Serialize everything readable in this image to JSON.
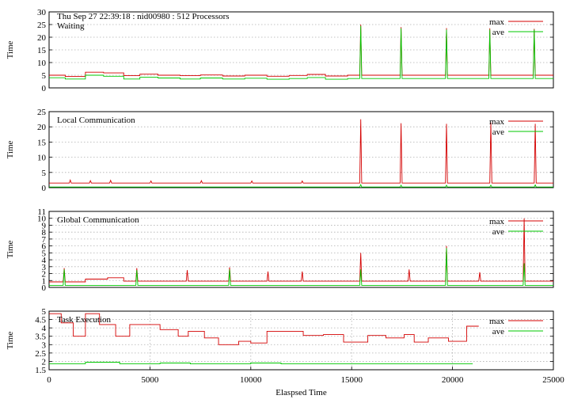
{
  "header": {
    "timestamp_text": "Thu Sep 27 22:39:18 : nid00980 : 512 Processors"
  },
  "colors": {
    "max": "#d40000",
    "ave": "#00c800",
    "grid": "#b0b0b0",
    "frame": "#000000"
  },
  "chart_data": [
    {
      "type": "line",
      "panel_title": "Waiting",
      "ylabel": "Time",
      "xlabel": "",
      "xlim": [
        0,
        25000
      ],
      "ylim": [
        0,
        30
      ],
      "yticks": [
        0,
        5,
        10,
        15,
        20,
        25,
        30
      ],
      "legend": [
        "max",
        "ave"
      ],
      "legend_position": "top-right",
      "grid": true,
      "series": [
        {
          "name": "max",
          "x": [
            0,
            800,
            801,
            1800,
            1801,
            2700,
            2701,
            3700,
            3701,
            4500,
            4501,
            5400,
            5401,
            6500,
            6501,
            7500,
            7501,
            8600,
            8601,
            9700,
            9701,
            10800,
            10801,
            11900,
            11901,
            12800,
            12801,
            13700,
            13701,
            14800,
            14801,
            15400,
            15450,
            15500,
            15550,
            17400,
            17450,
            17500,
            17550,
            19650,
            19700,
            19750,
            19800,
            21800,
            21850,
            21900,
            21950,
            24000,
            24050,
            24100,
            24150,
            25000
          ],
          "y": [
            5.0,
            5.0,
            4.5,
            4.5,
            6.2,
            6.2,
            5.9,
            5.9,
            4.8,
            4.8,
            5.4,
            5.4,
            5.0,
            5.0,
            4.8,
            4.8,
            5.1,
            5.1,
            4.7,
            4.7,
            5.0,
            5.0,
            4.6,
            4.6,
            4.9,
            4.9,
            5.3,
            5.3,
            4.7,
            4.7,
            5.0,
            5.0,
            25.0,
            5.0,
            5.0,
            5.0,
            24.0,
            5.0,
            5.0,
            5.0,
            23.6,
            5.0,
            5.0,
            5.0,
            23.5,
            5.0,
            5.0,
            5.0,
            23.3,
            5.0,
            5.0,
            5.0
          ]
        },
        {
          "name": "ave",
          "x": [
            0,
            800,
            801,
            1800,
            1801,
            2700,
            2701,
            3700,
            3701,
            4500,
            4501,
            5400,
            5401,
            6500,
            6501,
            7500,
            7501,
            8600,
            8601,
            9700,
            9701,
            10800,
            10801,
            11900,
            11901,
            12800,
            12801,
            13700,
            13701,
            14800,
            14801,
            15400,
            15450,
            15500,
            15550,
            17400,
            17450,
            17500,
            17550,
            19650,
            19700,
            19750,
            19800,
            21800,
            21850,
            21900,
            21950,
            24000,
            24050,
            24100,
            24150,
            25000
          ],
          "y": [
            4.0,
            4.0,
            3.5,
            3.5,
            5.0,
            5.0,
            4.6,
            4.6,
            3.5,
            3.5,
            4.2,
            4.2,
            3.9,
            3.9,
            3.5,
            3.5,
            3.9,
            3.9,
            3.5,
            3.5,
            3.8,
            3.8,
            3.4,
            3.4,
            3.7,
            3.7,
            4.1,
            4.1,
            3.4,
            3.4,
            3.7,
            3.7,
            24.5,
            3.7,
            3.7,
            3.7,
            23.5,
            3.7,
            3.7,
            3.7,
            23.0,
            3.7,
            3.7,
            3.7,
            23.0,
            3.7,
            3.7,
            3.7,
            23.0,
            3.7,
            3.7,
            3.7
          ]
        }
      ]
    },
    {
      "type": "line",
      "panel_title": "Local Communication",
      "ylabel": "Time",
      "xlabel": "",
      "xlim": [
        0,
        25000
      ],
      "ylim": [
        0,
        25
      ],
      "yticks": [
        0,
        5,
        10,
        15,
        20,
        25
      ],
      "legend": [
        "max",
        "ave"
      ],
      "legend_position": "top-right",
      "grid": true,
      "series": [
        {
          "name": "max",
          "x": [
            0,
            1000,
            1050,
            1100,
            2000,
            2050,
            2100,
            3000,
            3050,
            3100,
            5000,
            5050,
            5100,
            7500,
            7550,
            7600,
            10000,
            10050,
            10100,
            12500,
            12550,
            12600,
            15400,
            15450,
            15500,
            17400,
            17450,
            17500,
            19650,
            19700,
            19750,
            21850,
            21900,
            21950,
            24050,
            24100,
            24150,
            25000
          ],
          "y": [
            1.5,
            1.5,
            2.5,
            1.5,
            1.5,
            2.3,
            1.5,
            1.5,
            2.4,
            1.5,
            1.5,
            2.2,
            1.5,
            1.5,
            2.3,
            1.5,
            1.5,
            2.2,
            1.5,
            1.5,
            2.2,
            1.5,
            1.5,
            22.5,
            1.5,
            1.5,
            21.2,
            1.5,
            1.5,
            21.0,
            1.5,
            1.5,
            21.4,
            1.5,
            1.5,
            21.0,
            1.5,
            1.5
          ]
        },
        {
          "name": "ave",
          "x": [
            0,
            15400,
            15450,
            15500,
            17400,
            17450,
            17500,
            19650,
            19700,
            19750,
            21850,
            21900,
            21950,
            24050,
            24100,
            24150,
            25000
          ],
          "y": [
            0.2,
            0.2,
            1.0,
            0.2,
            0.2,
            0.8,
            0.2,
            0.2,
            0.8,
            0.2,
            0.2,
            0.8,
            0.2,
            0.2,
            0.9,
            0.2,
            0.2
          ]
        }
      ]
    },
    {
      "type": "line",
      "panel_title": "Global Communication",
      "ylabel": "Time",
      "xlabel": "",
      "xlim": [
        0,
        25000
      ],
      "ylim": [
        0,
        11
      ],
      "yticks": [
        0,
        1,
        2,
        3,
        4,
        5,
        6,
        7,
        8,
        9,
        10,
        11
      ],
      "legend": [
        "max",
        "ave"
      ],
      "legend_position": "top-right",
      "grid": true,
      "series": [
        {
          "name": "max",
          "x": [
            0,
            700,
            750,
            800,
            1800,
            1801,
            2900,
            2901,
            3700,
            3701,
            4300,
            4350,
            4400,
            6800,
            6850,
            6900,
            8900,
            8950,
            9000,
            10800,
            10850,
            10900,
            12500,
            12550,
            12600,
            15400,
            15450,
            15500,
            17800,
            17850,
            17900,
            19650,
            19700,
            19750,
            21300,
            21350,
            21400,
            23500,
            23550,
            23600,
            25000
          ],
          "y": [
            0.8,
            0.8,
            2.8,
            0.8,
            0.8,
            1.2,
            1.2,
            1.4,
            1.4,
            0.9,
            0.9,
            2.8,
            0.9,
            0.9,
            2.5,
            0.9,
            0.9,
            2.9,
            0.9,
            0.9,
            2.3,
            0.9,
            0.9,
            2.3,
            0.9,
            0.9,
            5.0,
            0.9,
            0.9,
            2.6,
            0.9,
            0.9,
            6.0,
            0.9,
            0.9,
            2.2,
            0.9,
            0.9,
            10.0,
            0.9,
            0.9
          ]
        },
        {
          "name": "ave",
          "x": [
            0,
            700,
            750,
            800,
            4300,
            4350,
            4400,
            8900,
            8950,
            9000,
            15400,
            15450,
            15500,
            19650,
            19700,
            19750,
            23500,
            23550,
            23600,
            25000
          ],
          "y": [
            0.3,
            0.3,
            2.6,
            0.3,
            0.3,
            2.5,
            0.3,
            0.3,
            2.6,
            0.3,
            0.3,
            2.6,
            0.3,
            0.3,
            5.7,
            0.3,
            0.3,
            3.5,
            0.3,
            0.3
          ]
        }
      ]
    },
    {
      "type": "line",
      "panel_title": "Task Execution",
      "ylabel": "Time",
      "xlabel": "Elaspsed Time",
      "xlim": [
        0,
        25000
      ],
      "ylim": [
        1.5,
        5
      ],
      "yticks": [
        1.5,
        2,
        2.5,
        3,
        3.5,
        4,
        4.5,
        5
      ],
      "xticks": [
        0,
        5000,
        10000,
        15000,
        20000,
        25000
      ],
      "legend": [
        "max",
        "ave"
      ],
      "legend_position": "top-right",
      "grid": true,
      "series": [
        {
          "name": "max",
          "x": [
            0,
            600,
            601,
            1200,
            1201,
            1800,
            1801,
            2500,
            2501,
            3300,
            3301,
            3800,
            3801,
            4000,
            4001,
            5500,
            5501,
            6400,
            6401,
            6900,
            6901,
            7700,
            7701,
            8400,
            8401,
            9400,
            9401,
            10000,
            10001,
            10800,
            10801,
            12000,
            12001,
            12600,
            12601,
            13600,
            13601,
            14600,
            14601,
            15800,
            15801,
            16700,
            16701,
            17600,
            17601,
            18100,
            18101,
            18800,
            18801,
            19800,
            19801,
            20700,
            20701,
            21300
          ],
          "y": [
            4.85,
            4.85,
            4.3,
            4.3,
            3.5,
            3.5,
            4.85,
            4.85,
            4.2,
            4.2,
            3.5,
            3.5,
            3.5,
            3.5,
            4.2,
            4.2,
            3.9,
            3.9,
            3.5,
            3.5,
            3.8,
            3.8,
            3.4,
            3.4,
            3.0,
            3.0,
            3.2,
            3.2,
            3.1,
            3.1,
            3.8,
            3.8,
            3.8,
            3.8,
            3.55,
            3.55,
            3.6,
            3.6,
            3.15,
            3.15,
            3.55,
            3.55,
            3.4,
            3.4,
            3.6,
            3.6,
            3.15,
            3.15,
            3.4,
            3.4,
            3.2,
            3.2,
            4.1,
            4.1
          ]
        },
        {
          "name": "ave",
          "x": [
            0,
            1800,
            1801,
            3500,
            3501,
            5500,
            5501,
            7000,
            7001,
            10000,
            10001,
            11500,
            11501,
            21000
          ],
          "y": [
            1.85,
            1.85,
            1.95,
            1.95,
            1.85,
            1.85,
            1.9,
            1.9,
            1.85,
            1.85,
            1.9,
            1.9,
            1.85,
            1.85
          ]
        }
      ]
    }
  ]
}
